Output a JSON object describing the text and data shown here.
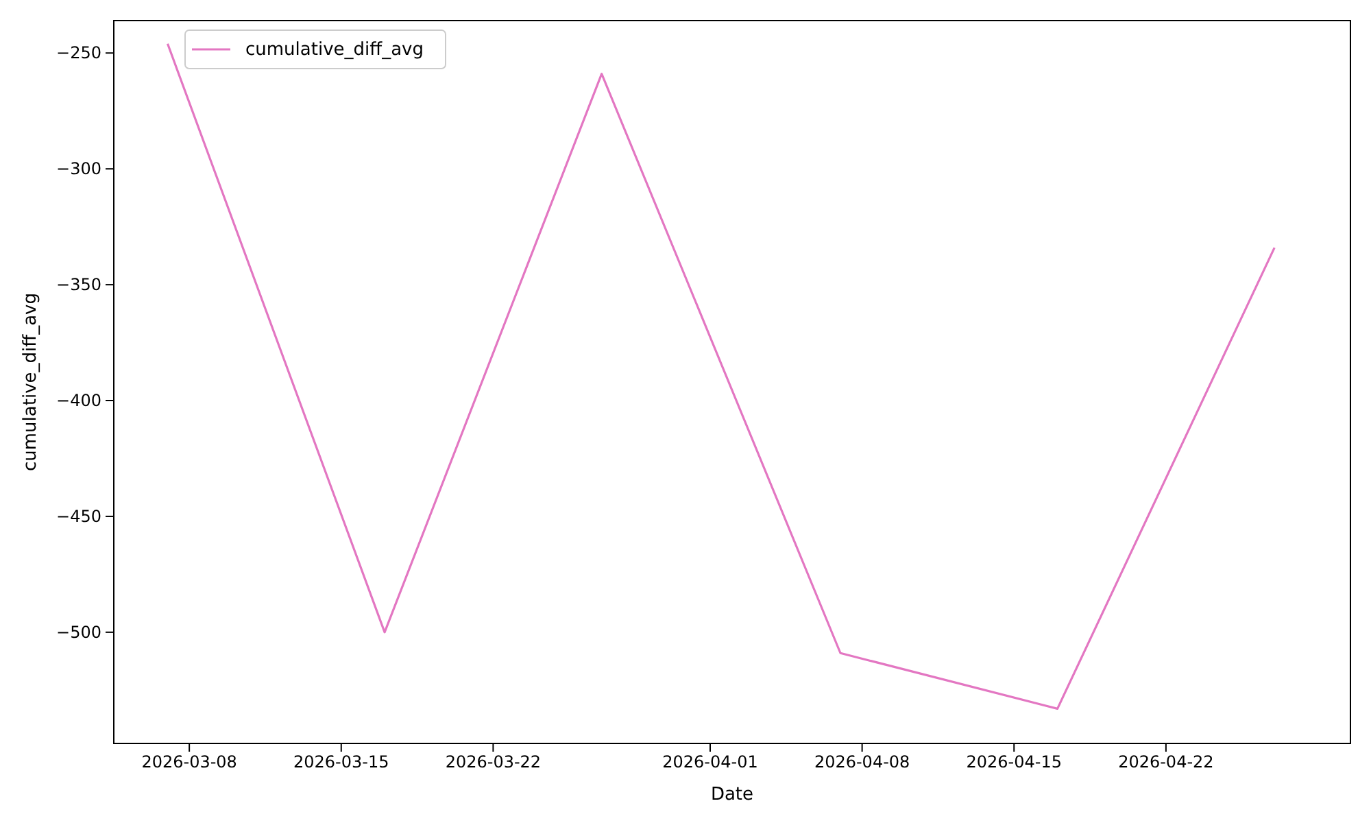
{
  "chart_data": {
    "type": "line",
    "xlabel": "Date",
    "ylabel": "cumulative_diff_avg",
    "x": [
      "2026-03-07",
      "2026-03-17",
      "2026-03-27",
      "2026-04-07",
      "2026-04-17",
      "2026-04-27"
    ],
    "series": [
      {
        "name": "cumulative_diff_avg",
        "color": "#e377c2",
        "values": [
          -246,
          -500,
          -259,
          -509,
          -533,
          -334
        ]
      }
    ],
    "xlim": [
      "2026-03-04T12:30",
      "2026-04-30T12:00"
    ],
    "xticks": [
      {
        "value": "2026-03-08",
        "label": "2026-03-08"
      },
      {
        "value": "2026-03-15",
        "label": "2026-03-15"
      },
      {
        "value": "2026-03-22",
        "label": "2026-03-22"
      },
      {
        "value": "2026-04-01",
        "label": "2026-04-01"
      },
      {
        "value": "2026-04-08",
        "label": "2026-04-08"
      },
      {
        "value": "2026-04-15",
        "label": "2026-04-15"
      },
      {
        "value": "2026-04-22",
        "label": "2026-04-22"
      }
    ],
    "ylim": [
      -548,
      -236
    ],
    "yticks": [
      {
        "value": -500,
        "label": "−500"
      },
      {
        "value": -450,
        "label": "−450"
      },
      {
        "value": -400,
        "label": "−400"
      },
      {
        "value": -350,
        "label": "−350"
      },
      {
        "value": -300,
        "label": "−300"
      },
      {
        "value": -250,
        "label": "−250"
      }
    ],
    "legend": "top left",
    "grid": false,
    "line_style": "solid",
    "marker": "none"
  }
}
